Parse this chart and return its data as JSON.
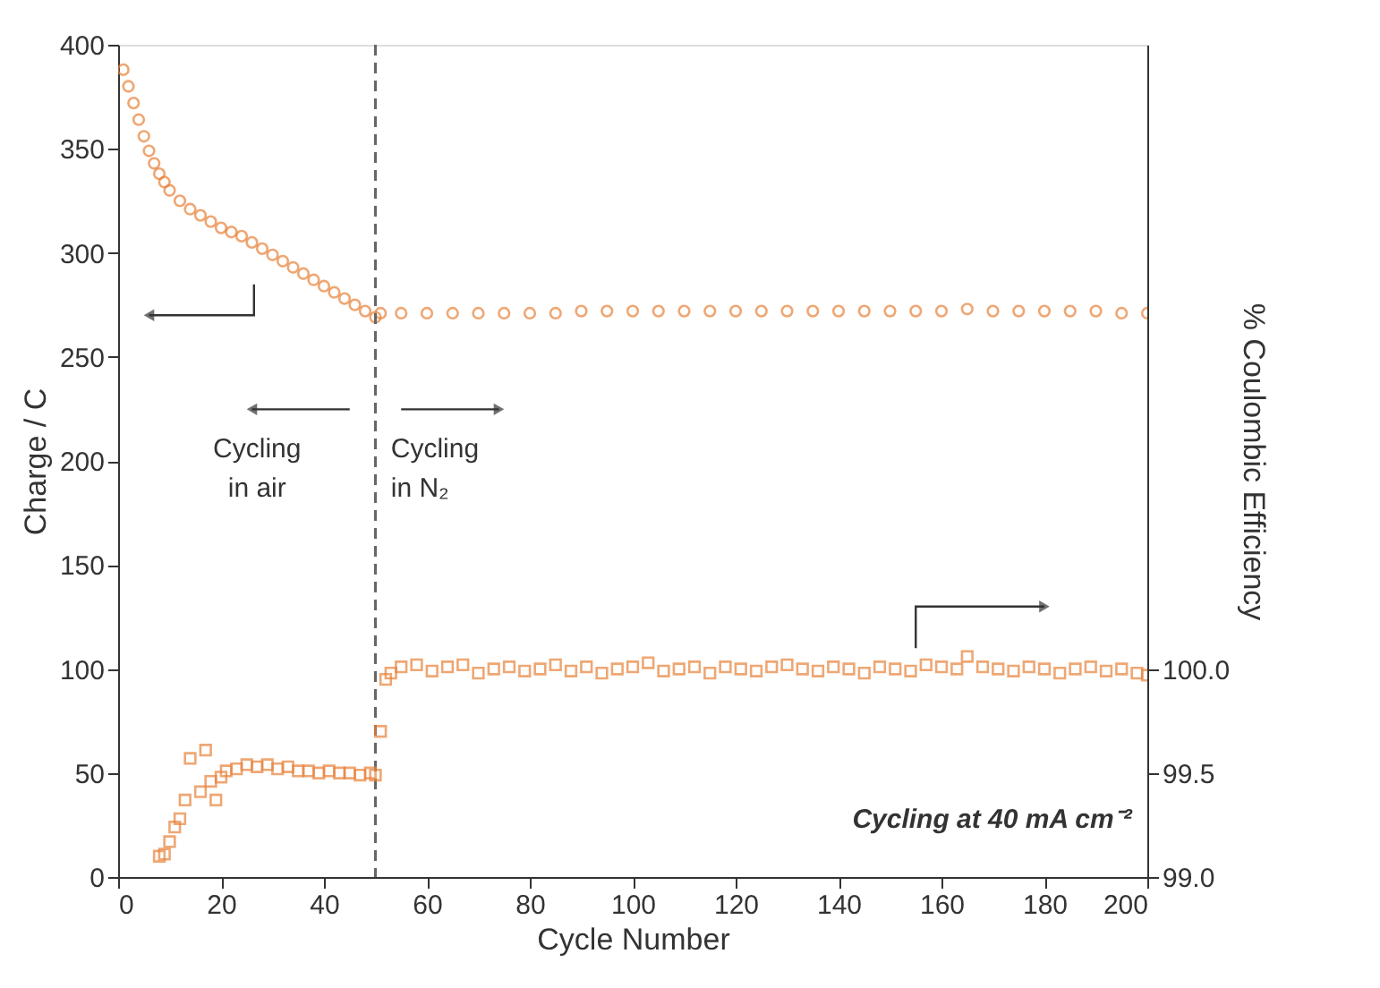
{
  "chart_data": {
    "type": "scatter",
    "xlabel": "Cycle Number",
    "ylabel": "Charge / C",
    "y2label": "% Coulombic Efficiency",
    "xlim": [
      0,
      200
    ],
    "xticks": [
      0,
      20,
      40,
      60,
      80,
      100,
      120,
      140,
      160,
      180,
      200
    ],
    "ylim": [
      0,
      400
    ],
    "yticks": [
      0,
      50,
      100,
      150,
      200,
      250,
      300,
      350,
      400
    ],
    "y2lim": [
      99.0,
      103.0
    ],
    "y2ticks": [
      {
        "value": 99.0,
        "label": "99.0"
      },
      {
        "value": 99.5,
        "label": "99.5"
      },
      {
        "value": 100.0,
        "label": "100.0"
      }
    ],
    "series": [
      {
        "color": "#e8823a",
        "marker": "circle",
        "x": [
          1,
          2,
          3,
          4,
          5,
          6,
          7,
          8,
          9,
          10,
          12,
          14,
          16,
          18,
          20,
          22,
          24,
          26,
          28,
          30,
          32,
          34,
          36,
          38,
          40,
          42,
          44,
          46,
          48,
          50,
          51,
          55,
          60,
          65,
          70,
          75,
          80,
          85,
          90,
          95,
          100,
          105,
          110,
          115,
          120,
          125,
          130,
          135,
          140,
          145,
          150,
          155,
          160,
          165,
          170,
          175,
          180,
          185,
          190,
          195,
          200
        ],
        "values": [
          388,
          380,
          372,
          364,
          356,
          349,
          343,
          338,
          334,
          330,
          325,
          321,
          318,
          315,
          312,
          310,
          308,
          305,
          302,
          299,
          296,
          293,
          290,
          287,
          284,
          281,
          278,
          275,
          272,
          269,
          271,
          271,
          271,
          271,
          271,
          271,
          271,
          271,
          272,
          272,
          272,
          272,
          272,
          272,
          272,
          272,
          272,
          272,
          272,
          272,
          272,
          272,
          272,
          273,
          272,
          272,
          272,
          272,
          272,
          271,
          271
        ]
      },
      {
        "color": "#e8823a",
        "marker": "square",
        "axis": "y2",
        "x": [
          8,
          9,
          10,
          11,
          12,
          13,
          14,
          16,
          17,
          18,
          19,
          20,
          21,
          23,
          25,
          27,
          29,
          31,
          33,
          35,
          37,
          39,
          41,
          43,
          45,
          47,
          49,
          50,
          51,
          52,
          53,
          55,
          58,
          61,
          64,
          67,
          70,
          73,
          76,
          79,
          82,
          85,
          88,
          91,
          94,
          97,
          100,
          103,
          106,
          109,
          112,
          115,
          118,
          121,
          124,
          127,
          130,
          133,
          136,
          139,
          142,
          145,
          148,
          151,
          154,
          157,
          160,
          163,
          165,
          168,
          171,
          174,
          177,
          180,
          183,
          186,
          189,
          192,
          195,
          198,
          200
        ],
        "values": [
          99.1,
          99.11,
          99.17,
          99.24,
          99.28,
          99.37,
          99.57,
          99.41,
          99.61,
          99.46,
          99.37,
          99.48,
          99.51,
          99.52,
          99.54,
          99.53,
          99.54,
          99.52,
          99.53,
          99.51,
          99.51,
          99.5,
          99.51,
          99.5,
          99.5,
          99.49,
          99.5,
          99.49,
          99.7,
          99.95,
          99.98,
          100.01,
          100.02,
          99.99,
          100.01,
          100.02,
          99.98,
          100.0,
          100.01,
          99.99,
          100.0,
          100.02,
          99.99,
          100.01,
          99.98,
          100.0,
          100.01,
          100.03,
          99.99,
          100.0,
          100.01,
          99.98,
          100.01,
          100.0,
          99.99,
          100.01,
          100.02,
          100.0,
          99.99,
          100.01,
          100.0,
          99.98,
          100.01,
          100.0,
          99.99,
          100.02,
          100.01,
          100.0,
          100.06,
          100.01,
          100.0,
          99.99,
          100.01,
          100.0,
          99.98,
          100.0,
          100.01,
          99.99,
          100.0,
          99.98,
          99.97
        ]
      }
    ],
    "ref_lines": [
      {
        "axis": "x",
        "value": 50,
        "color": "#666666",
        "line_style": "dashed"
      }
    ],
    "annotations": [
      "Cycling in air",
      "Cycling in N₂",
      "Cycling at 40 mA cm⁻²"
    ],
    "grid": false
  }
}
